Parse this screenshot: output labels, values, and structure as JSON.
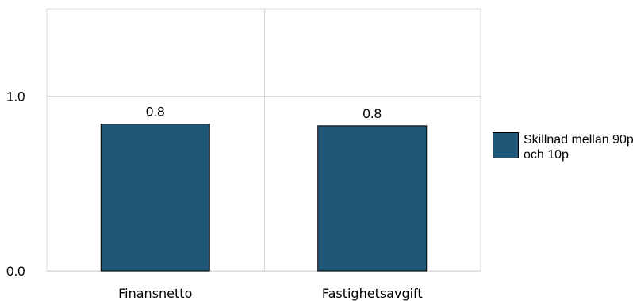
{
  "chart_data": {
    "type": "bar",
    "categories": [
      "Finansnetto",
      "Fastighetsavgift"
    ],
    "series": [
      {
        "name": "Skillnad mellan 90p och 10p",
        "values": [
          0.84,
          0.83
        ],
        "labels": [
          "0.8",
          "0.8"
        ]
      }
    ],
    "ylim": [
      0,
      1.5
    ],
    "yticks": [
      0.0,
      1.0
    ],
    "ytick_labels": [
      "0.0",
      "1.0"
    ],
    "grid": true,
    "legend_position": "right",
    "colors": {
      "bar_fill": "#1f5778",
      "bar_stroke": "#000000",
      "grid": "#d9d9d9"
    }
  }
}
